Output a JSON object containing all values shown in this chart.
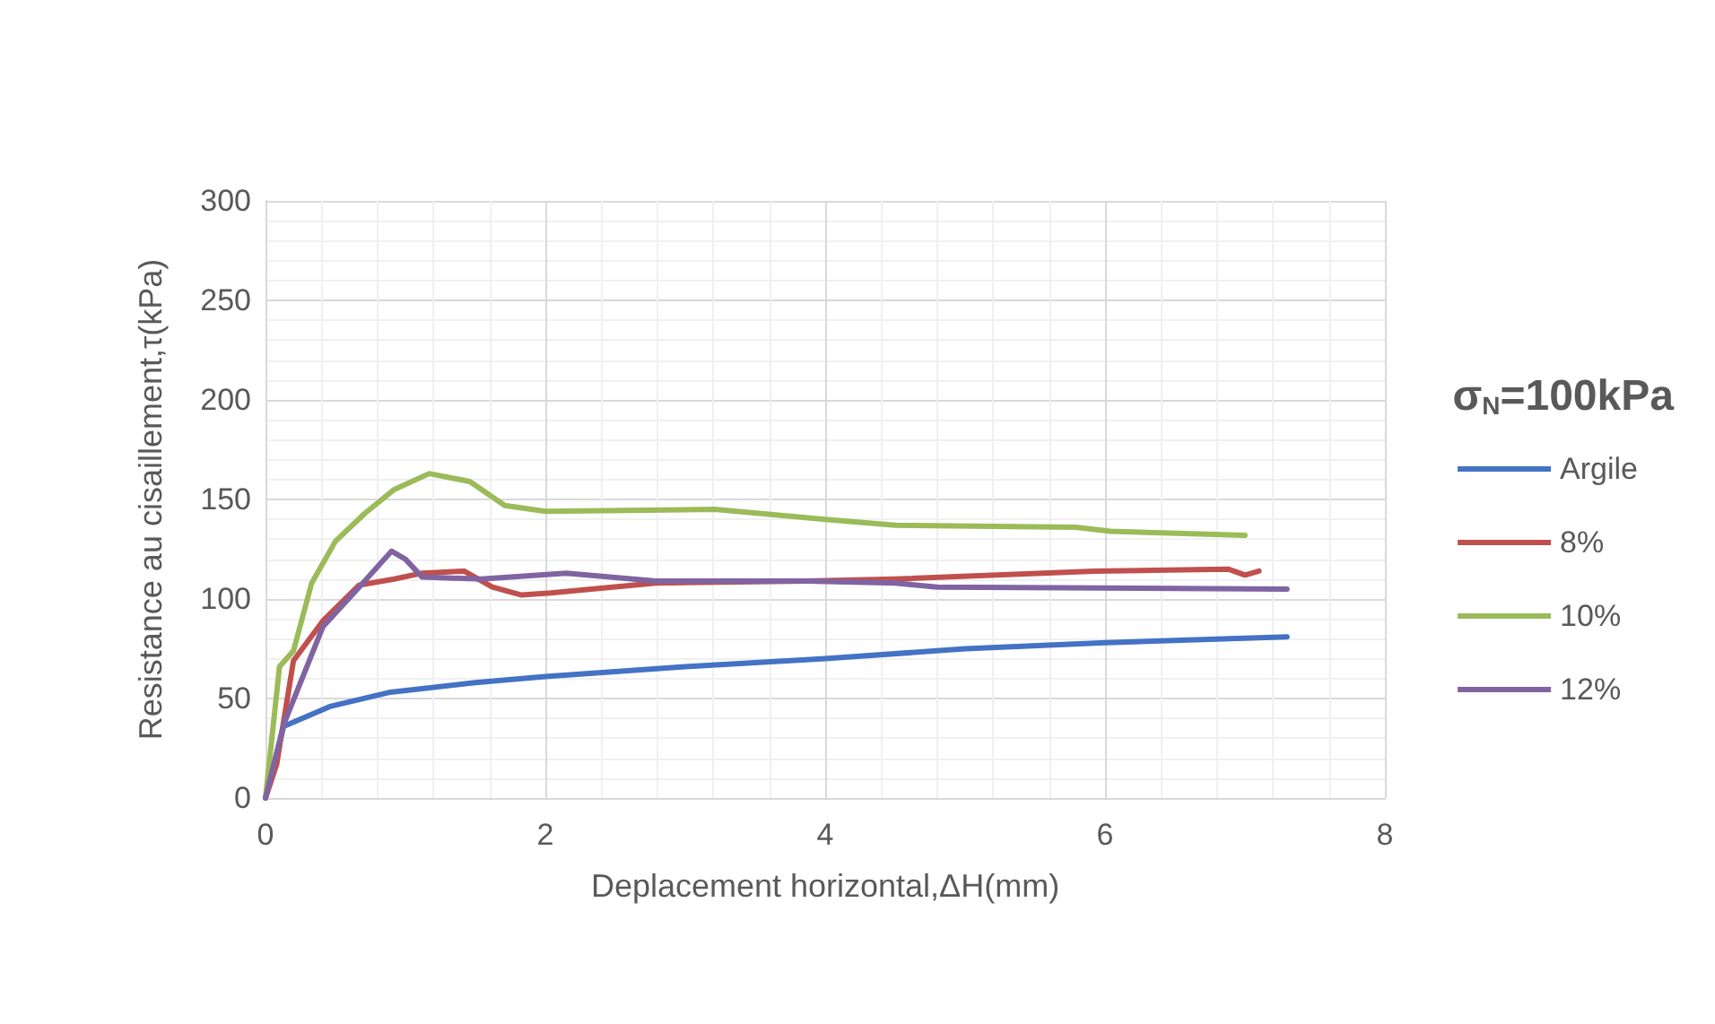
{
  "chart_data": {
    "type": "line",
    "xlabel": "Deplacement horizontal,ΔH(mm)",
    "ylabel": "Resistance au cisaillement,τ(kPa)",
    "legend_title": "σ$_{N}$=100kPa",
    "legend": "right",
    "grid": true,
    "marker": "none",
    "line_style": "solid",
    "xlim": [
      0,
      8
    ],
    "xticks": [
      0,
      2,
      4,
      6,
      8
    ],
    "ylim": [
      0,
      300
    ],
    "yticks": [
      0,
      50,
      100,
      150,
      200,
      250,
      300
    ],
    "series": [
      {
        "name": "Argile",
        "color": "#4472c4",
        "x": [
          0,
          0.13,
          0.46,
          0.88,
          1.5,
          2.0,
          3.0,
          4.0,
          5.0,
          6.0,
          7.3
        ],
        "values": [
          0,
          36,
          46,
          53,
          58,
          61,
          66,
          70,
          75,
          78,
          81
        ]
      },
      {
        "name": "8%",
        "color": "#c0504d",
        "x": [
          0,
          0.08,
          0.2,
          0.41,
          0.67,
          0.92,
          1.12,
          1.42,
          1.62,
          1.83,
          2.04,
          2.79,
          3.87,
          4.5,
          5.92,
          6.88,
          7.0,
          7.1
        ],
        "values": [
          0,
          17,
          69,
          89,
          107,
          110,
          113,
          114,
          106,
          102,
          103,
          108,
          109,
          110,
          114,
          115,
          112,
          114
        ]
      },
      {
        "name": "10%",
        "color": "#9bbb59",
        "x": [
          0,
          0.1,
          0.2,
          0.33,
          0.5,
          0.71,
          0.92,
          1.17,
          1.46,
          1.71,
          2.0,
          3.21,
          4.0,
          4.5,
          5.79,
          6.04,
          7.0
        ],
        "values": [
          0,
          66,
          74,
          108,
          129,
          143,
          155,
          163,
          159,
          147,
          144,
          145,
          140,
          137,
          136,
          134,
          132
        ]
      },
      {
        "name": "12%",
        "color": "#8064a2",
        "x": [
          0,
          0.13,
          0.41,
          0.67,
          0.9,
          1.0,
          1.12,
          1.54,
          2.15,
          2.79,
          3.87,
          4.5,
          4.8,
          7.3
        ],
        "values": [
          0,
          37,
          86,
          106,
          124,
          120,
          111,
          110,
          113,
          109,
          109,
          108,
          106,
          105
        ]
      }
    ]
  }
}
